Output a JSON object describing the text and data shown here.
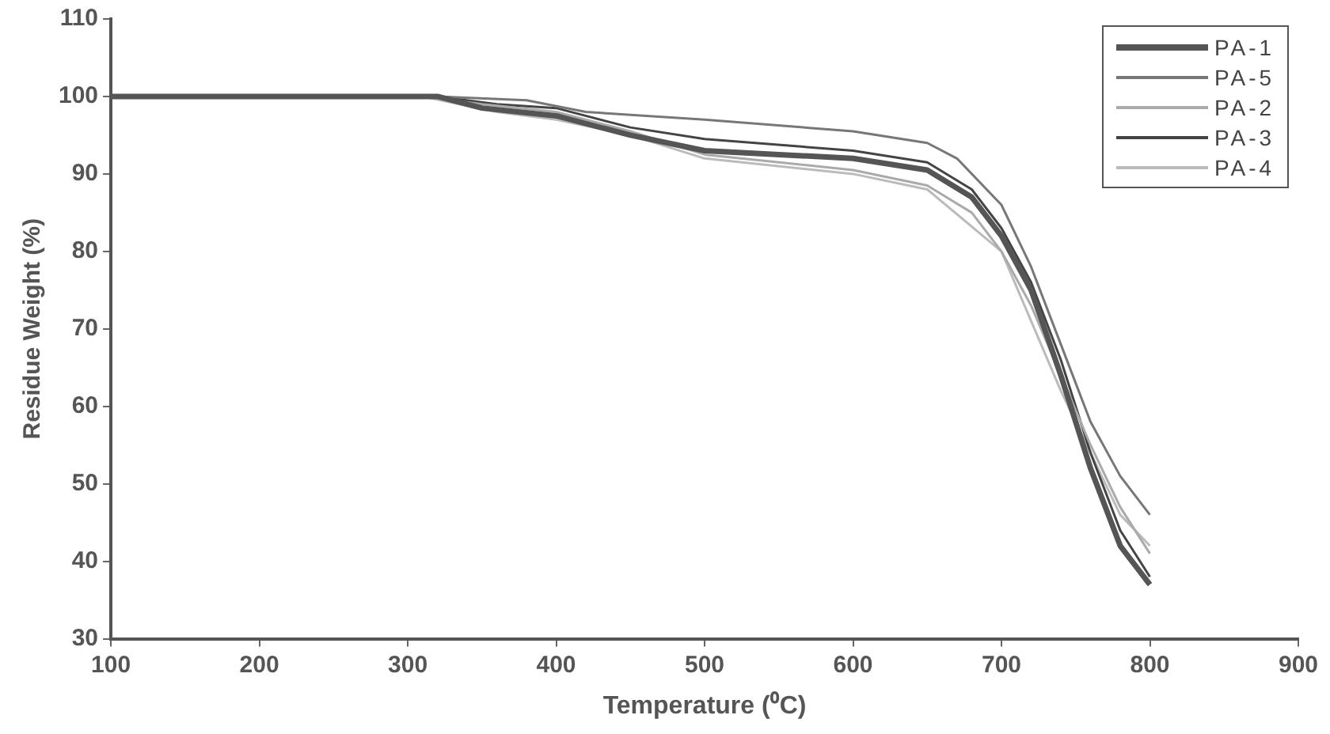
{
  "chart_data": {
    "type": "line",
    "xlabel": "Temperature (⁰C)",
    "ylabel": "Residue Weight (%)",
    "xlim": [
      100,
      900
    ],
    "xticks": [
      100,
      200,
      300,
      400,
      500,
      600,
      700,
      800,
      900
    ],
    "ylim": [
      30,
      110
    ],
    "yticks": [
      30,
      40,
      50,
      60,
      70,
      80,
      90,
      100,
      110
    ],
    "grid": false,
    "legend": "top right",
    "marker": "none",
    "line_style": "solid",
    "series": [
      {
        "name": "PA-1",
        "color": "#555555",
        "x": [
          100,
          320,
          350,
          400,
          450,
          500,
          550,
          600,
          650,
          680,
          700,
          720,
          740,
          760,
          780,
          800
        ],
        "values": [
          100,
          100,
          98.5,
          97.5,
          95,
          93,
          92.5,
          92,
          90.5,
          87,
          82,
          75,
          64,
          52,
          42,
          37
        ]
      },
      {
        "name": "PA-5",
        "color": "#777777",
        "x": [
          100,
          320,
          380,
          420,
          500,
          600,
          650,
          670,
          700,
          720,
          740,
          760,
          780,
          800
        ],
        "values": [
          100,
          100,
          99.5,
          98,
          97,
          95.5,
          94,
          92,
          86,
          78,
          68,
          58,
          51,
          46
        ]
      },
      {
        "name": "PA-2",
        "color": "#aaaaaa",
        "x": [
          100,
          310,
          350,
          400,
          450,
          500,
          600,
          650,
          680,
          700,
          720,
          740,
          760,
          780,
          800
        ],
        "values": [
          100,
          100,
          99,
          98,
          95.5,
          92.5,
          90.5,
          88.5,
          85,
          80,
          73,
          64,
          55,
          47,
          41
        ]
      },
      {
        "name": "PA-3",
        "color": "#444444",
        "x": [
          100,
          320,
          360,
          400,
          450,
          500,
          600,
          650,
          680,
          700,
          720,
          740,
          760,
          780,
          800
        ],
        "values": [
          100,
          100,
          99,
          98.5,
          96,
          94.5,
          93,
          91.5,
          88,
          83,
          76,
          66,
          54,
          44,
          38
        ]
      },
      {
        "name": "PA-4",
        "color": "#bbbbbb",
        "x": [
          100,
          310,
          360,
          400,
          450,
          500,
          600,
          650,
          700,
          740,
          780,
          800
        ],
        "values": [
          100,
          100,
          98,
          97,
          95,
          92,
          90,
          88,
          80,
          62,
          46,
          42
        ]
      }
    ]
  }
}
